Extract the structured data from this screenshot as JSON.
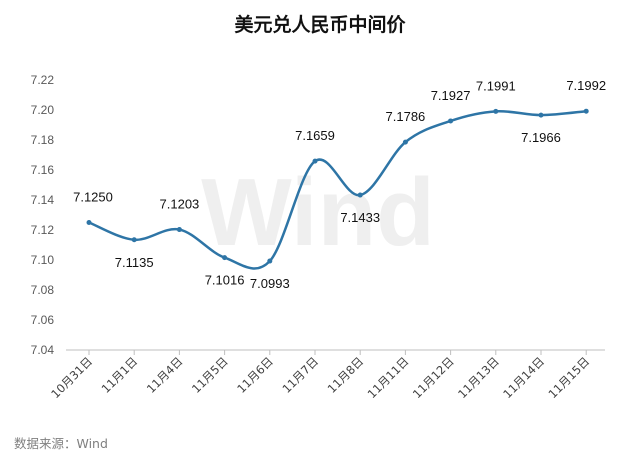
{
  "chart_data": {
    "type": "line",
    "title": "美元兑人民币中间价",
    "categories": [
      "10月31日",
      "11月1日",
      "11月4日",
      "11月5日",
      "11月6日",
      "11月7日",
      "11月8日",
      "11月11日",
      "11月12日",
      "11月13日",
      "11月14日",
      "11月15日"
    ],
    "series": [
      {
        "values": [
          7.125,
          7.1135,
          7.1203,
          7.1016,
          7.0993,
          7.1659,
          7.1433,
          7.1786,
          7.1927,
          7.1991,
          7.1966,
          7.1992
        ],
        "labels": [
          "7.1250",
          "7.1135",
          "7.1203",
          "7.1016",
          "7.0993",
          "7.1659",
          "7.1433",
          "7.1786",
          "7.1927",
          "7.1991",
          "7.1966",
          "7.1992"
        ],
        "color": "#2e75a6"
      }
    ],
    "ylim": [
      7.04,
      7.22
    ],
    "yticks": [
      "7.22",
      "7.20",
      "7.18",
      "7.16",
      "7.14",
      "7.12",
      "7.10",
      "7.08",
      "7.06",
      "7.04"
    ],
    "grid": false,
    "legend": "none",
    "source": "数据来源：Wind",
    "watermark": "Wind"
  }
}
